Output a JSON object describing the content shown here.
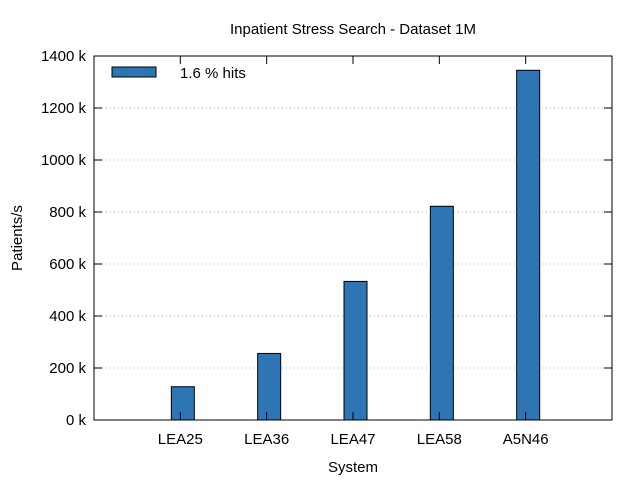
{
  "chart_data": {
    "type": "bar",
    "title": "Inpatient Stress Search - Dataset 1M",
    "xlabel": "System",
    "ylabel": "Patients/s",
    "categories": [
      "LEA25",
      "LEA36",
      "LEA47",
      "LEA58",
      "A5N46"
    ],
    "series": [
      {
        "name": "1.6 % hits",
        "values": [
          128000,
          256000,
          533000,
          822000,
          1345000
        ],
        "color": "#2e75b6"
      }
    ],
    "ylim": [
      0,
      1400000
    ],
    "yticks": [
      0,
      200000,
      400000,
      600000,
      800000,
      1000000,
      1200000,
      1400000
    ],
    "ytick_labels": [
      "0 k",
      "200 k",
      "400 k",
      "600 k",
      "800 k",
      "1000 k",
      "1200 k",
      "1400 k"
    ],
    "grid": true,
    "legend_position": "top-left"
  }
}
